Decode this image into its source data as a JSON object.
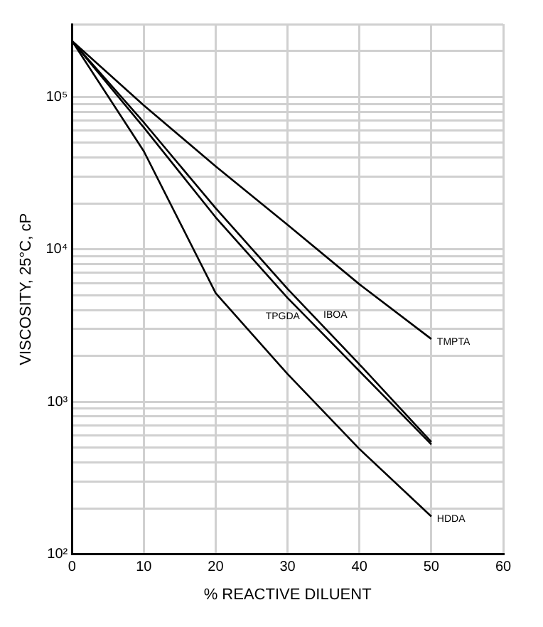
{
  "chart_data": {
    "type": "line",
    "xlabel": "% REACTIVE DILUENT",
    "ylabel": "VISCOSITY, 25°C, cP",
    "log": "y",
    "grid": true,
    "marker": "none",
    "line_style": "solid",
    "legend": false,
    "x": [
      0,
      10,
      20,
      30,
      40,
      50
    ],
    "series": [
      {
        "name": "TMPTA",
        "color": "#000000",
        "values": [
          233000,
          88000,
          35000,
          14500,
          5900,
          2580
        ]
      },
      {
        "name": "IBOA",
        "color": "#000000",
        "values": [
          233000,
          68000,
          18600,
          5500,
          1760,
          545
        ]
      },
      {
        "name": "TPGDA",
        "color": "#000000",
        "values": [
          233000,
          63000,
          16200,
          4800,
          1590,
          525
        ]
      },
      {
        "name": "HDDA",
        "color": "#000000",
        "values": [
          233000,
          44000,
          5160,
          1520,
          490,
          177
        ]
      }
    ],
    "xlim": [
      0,
      60
    ],
    "xticks": [
      0,
      10,
      20,
      30,
      40,
      50,
      60
    ],
    "ylim": [
      100,
      300000
    ],
    "yticks": [
      {
        "value": 100,
        "label": "10²"
      },
      {
        "value": 200,
        "label": null
      },
      {
        "value": 300,
        "label": null
      },
      {
        "value": 400,
        "label": null
      },
      {
        "value": 500,
        "label": null
      },
      {
        "value": 600,
        "label": null
      },
      {
        "value": 700,
        "label": null
      },
      {
        "value": 800,
        "label": null
      },
      {
        "value": 900,
        "label": null
      },
      {
        "value": 1000,
        "label": "10³"
      },
      {
        "value": 2000,
        "label": null
      },
      {
        "value": 3000,
        "label": null
      },
      {
        "value": 4000,
        "label": null
      },
      {
        "value": 5000,
        "label": null
      },
      {
        "value": 6000,
        "label": null
      },
      {
        "value": 7000,
        "label": null
      },
      {
        "value": 8000,
        "label": null
      },
      {
        "value": 9000,
        "label": null
      },
      {
        "value": 10000,
        "label": "10⁴"
      },
      {
        "value": 20000,
        "label": null
      },
      {
        "value": 30000,
        "label": null
      },
      {
        "value": 40000,
        "label": null
      },
      {
        "value": 50000,
        "label": null
      },
      {
        "value": 60000,
        "label": null
      },
      {
        "value": 70000,
        "label": null
      },
      {
        "value": 80000,
        "label": null
      },
      {
        "value": 90000,
        "label": null
      },
      {
        "value": 100000,
        "label": "10⁵"
      },
      {
        "value": 200000,
        "label": null
      },
      {
        "value": 300000,
        "label": null
      }
    ]
  }
}
